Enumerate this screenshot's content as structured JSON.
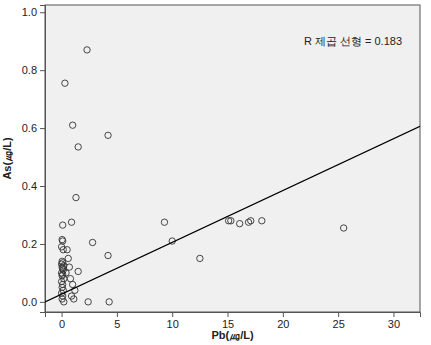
{
  "chart_data": {
    "type": "scatter",
    "x_label": "Pb(㎍/L)",
    "y_label": "As(㎍/L)",
    "annotations": [
      "R 제곱 선형 = 0.183"
    ],
    "xlim": [
      -1.5,
      32.4
    ],
    "ylim": [
      -0.035,
      1.025
    ],
    "xticks": [
      0,
      5,
      10,
      15,
      20,
      25,
      30
    ],
    "yticks": [
      {
        "value": 0,
        "label": "0.0"
      },
      {
        "value": 0.2,
        "label": "0.2"
      },
      {
        "value": 0.4,
        "label": "0.4"
      },
      {
        "value": 0.6,
        "label": "0.6"
      },
      {
        "value": 0.8,
        "label": "0.8"
      },
      {
        "value": 1,
        "label": "1.0"
      }
    ],
    "grid": false,
    "series": [
      {
        "type": "scatter",
        "marker": "circle",
        "color": "#333333",
        "x": [
          0.3,
          2.3,
          1.0,
          1.5,
          4.2,
          1.3,
          0.9,
          0.1,
          2.8,
          4.2,
          1.5,
          9.3,
          10.0,
          12.5,
          15.1,
          15.3,
          16.1,
          16.9,
          17.1,
          18.1,
          25.5,
          4.3,
          2.4,
          0.05,
          0.1,
          0.0,
          0.15,
          0.05,
          0.1,
          0.0,
          0.2,
          0.05,
          0.1,
          0.15,
          0.0,
          0.1,
          0.05,
          0.2,
          0.0,
          0.1,
          0.05,
          0.15,
          0.0,
          0.1,
          0.05,
          0.2,
          0.6,
          0.7,
          0.8,
          1.0,
          0.9,
          1.1,
          0.5,
          0.4,
          1.2
        ],
        "values": [
          0.755,
          0.87,
          0.61,
          0.535,
          0.575,
          0.36,
          0.275,
          0.265,
          0.205,
          0.16,
          0.105,
          0.275,
          0.21,
          0.15,
          0.28,
          0.28,
          0.27,
          0.275,
          0.28,
          0.28,
          0.255,
          0.0,
          0.0,
          0.215,
          0.21,
          0.19,
          0.18,
          0.14,
          0.135,
          0.13,
          0.125,
          0.12,
          0.115,
          0.11,
          0.1,
          0.095,
          0.09,
          0.08,
          0.07,
          0.06,
          0.05,
          0.04,
          0.03,
          0.02,
          0.01,
          0.0,
          0.15,
          0.12,
          0.08,
          0.06,
          0.02,
          0.01,
          0.18,
          0.1,
          0.04
        ]
      },
      {
        "type": "line",
        "line_style": "solid",
        "color": "#000000",
        "x": [
          -1.5,
          32.4
        ],
        "values": [
          0.0,
          0.606
        ]
      }
    ]
  }
}
